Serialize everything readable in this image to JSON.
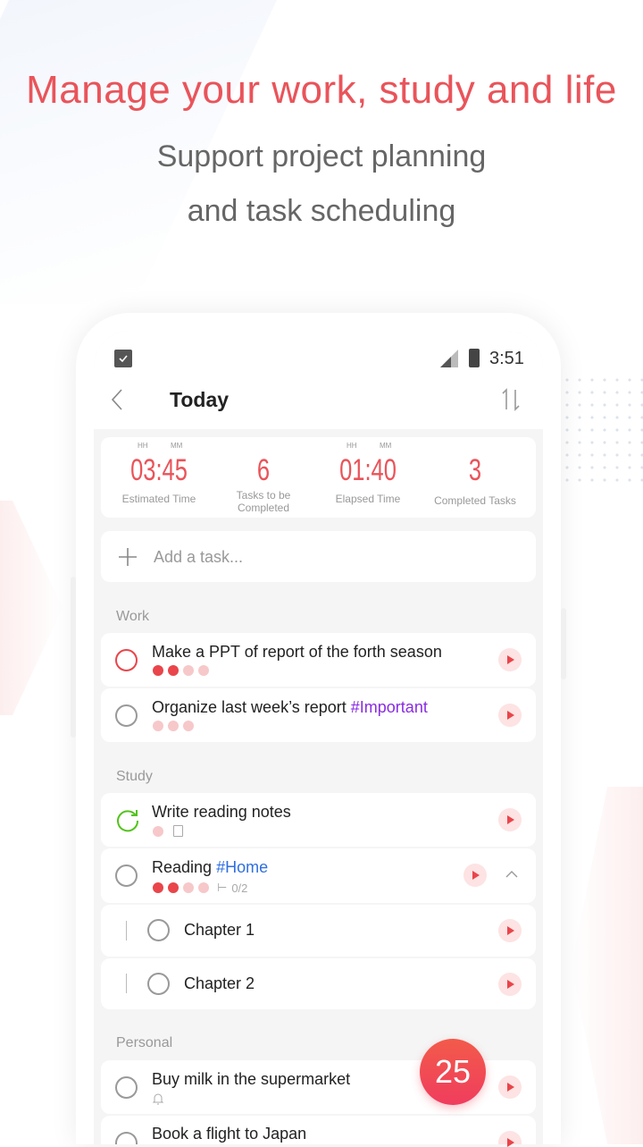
{
  "promo": {
    "headline": "Manage your work, study and life",
    "sub1": "Support project planning",
    "sub2": "and task scheduling"
  },
  "status": {
    "time": "3:51",
    "icons": [
      "calendar-check-icon",
      "signal-icon",
      "battery-icon"
    ]
  },
  "header": {
    "title": "Today",
    "back_icon": "chevron-left-icon",
    "sort_icon": "sort-icon"
  },
  "stats": {
    "hh": "HH",
    "mm": "MM",
    "items": [
      {
        "value": "03:45",
        "label": "Estimated Time"
      },
      {
        "value": "6",
        "label": "Tasks to be Completed"
      },
      {
        "value": "01:40",
        "label": "Elapsed Time"
      },
      {
        "value": "3",
        "label": "Completed Tasks"
      }
    ]
  },
  "add_task": {
    "placeholder": "Add a task..."
  },
  "sections": {
    "work": "Work",
    "study": "Study",
    "personal": "Personal"
  },
  "tasks": [
    {
      "title": "Make a PPT of report of the forth season",
      "tag": "",
      "pomodoros_done": 2,
      "pomodoros_total": 4
    },
    {
      "title": "Organize last week’s report ",
      "tag": "#Important",
      "pomodoros_done": 0,
      "pomodoros_total": 3
    },
    {
      "title": "Write reading notes",
      "tag": "",
      "pomodoros_done": 0,
      "pomodoros_total": 1
    },
    {
      "title": "Reading ",
      "tag": "#Home",
      "pomodoros_done": 2,
      "pomodoros_total": 4,
      "subtasks": "0/2"
    },
    {
      "title": "Chapter 1"
    },
    {
      "title": "Chapter 2"
    },
    {
      "title": "Buy milk in the supermarket"
    },
    {
      "title": "Book a flight to Japan"
    }
  ],
  "colors": {
    "accent": "#e9545a",
    "important_tag": "#8a2be2",
    "home_tag": "#2f6fe0",
    "in_progress": "#52c41a"
  },
  "fab": {
    "value": "25"
  }
}
